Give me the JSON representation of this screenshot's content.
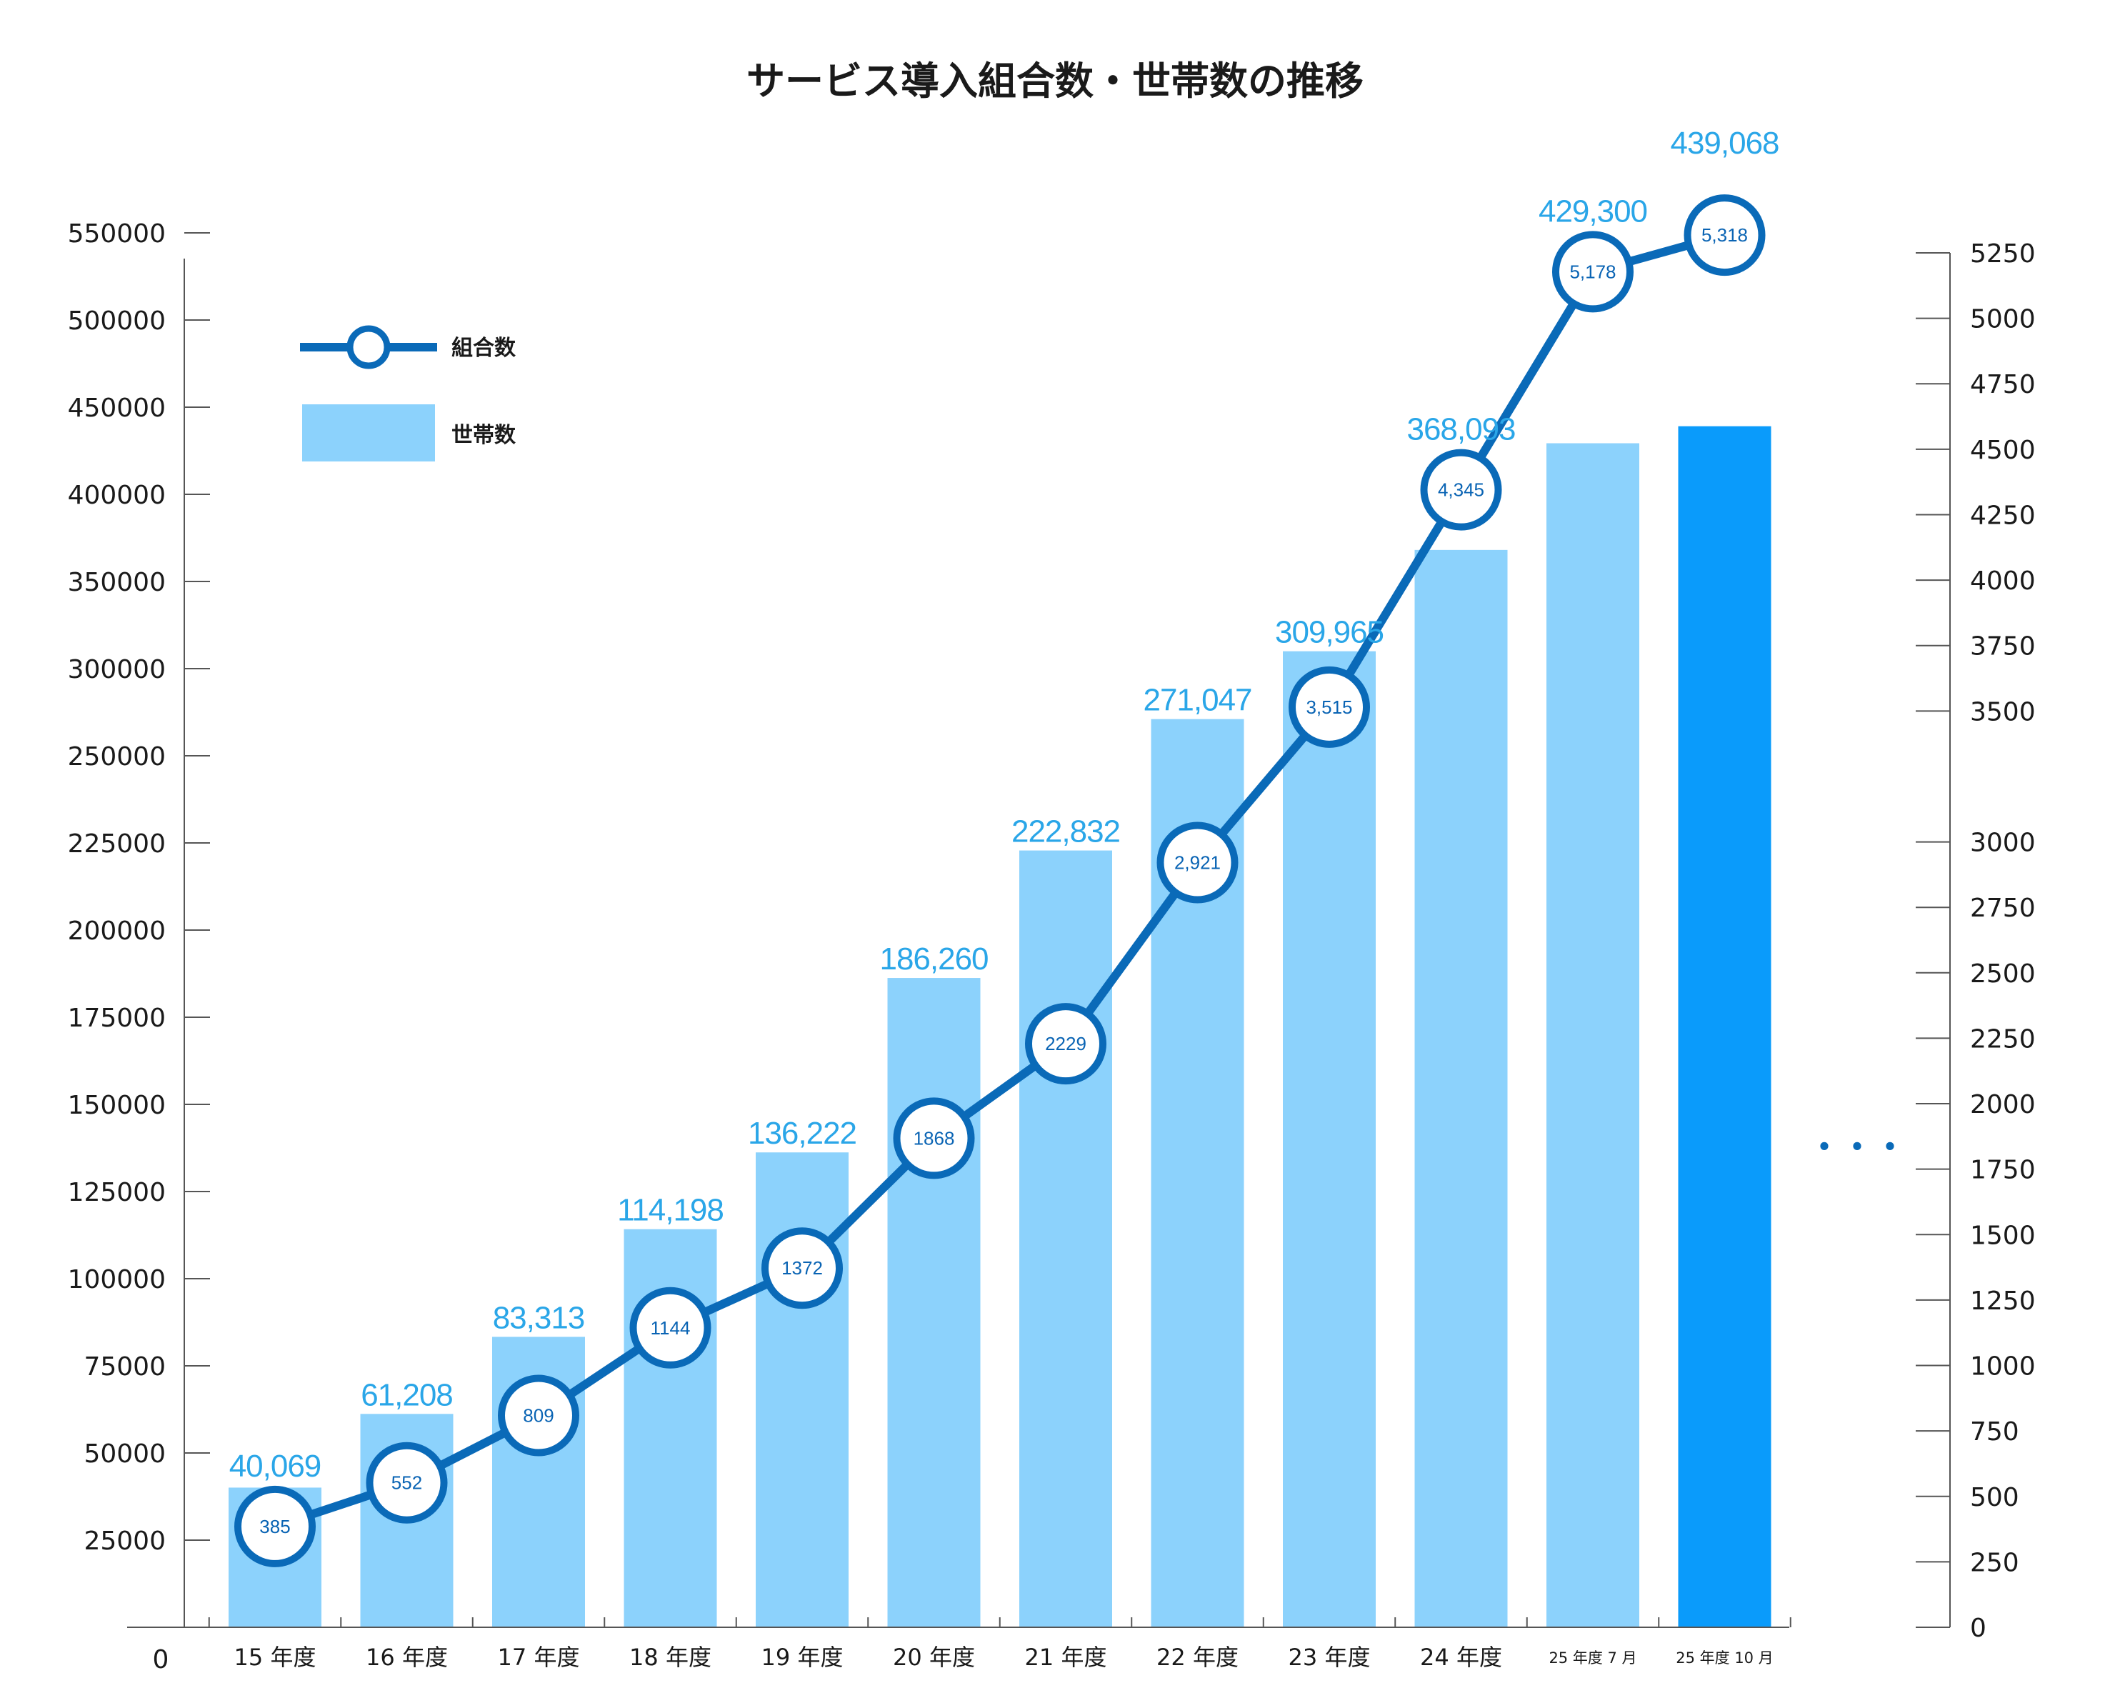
{
  "chart_data": {
    "type": "bar",
    "title": "サービス導入組合数・世帯数の推移",
    "categories": [
      "15 年度",
      "16 年度",
      "17 年度",
      "18 年度",
      "19 年度",
      "20 年度",
      "21 年度",
      "22 年度",
      "23 年度",
      "24 年度",
      "25 年度 7 月",
      "25 年度 10 月"
    ],
    "series": [
      {
        "name": "世帯数",
        "kind": "bar",
        "axis": "left",
        "color": "#8cd2fc",
        "highlight_color": "#0a9bfb",
        "highlight_index": 11,
        "values": [
          40069,
          61208,
          83313,
          114198,
          136222,
          186260,
          222832,
          271047,
          309965,
          368093,
          429300,
          439068
        ],
        "labels": [
          "40,069",
          "61,208",
          "83,313",
          "114,198",
          "136,222",
          "186,260",
          "222,832",
          "271,047",
          "309,965",
          "368,093",
          "429,300",
          "439,068"
        ]
      },
      {
        "name": "組合数",
        "kind": "line",
        "axis": "right",
        "color": "#0a6ab8",
        "values": [
          385,
          552,
          809,
          1144,
          1372,
          1868,
          2229,
          2921,
          3515,
          4345,
          5178,
          5318
        ],
        "labels": [
          "385",
          "552",
          "809",
          "1144",
          "1372",
          "1868",
          "2229",
          "2,921",
          "3,515",
          "4,345",
          "5,178",
          "5,318"
        ]
      }
    ],
    "left_axis": {
      "ticks": [
        0,
        25000,
        50000,
        75000,
        100000,
        125000,
        150000,
        175000,
        200000,
        225000,
        250000,
        300000,
        350000,
        400000,
        450000,
        500000,
        550000
      ]
    },
    "right_axis": {
      "ticks": [
        0,
        250,
        500,
        750,
        1000,
        1250,
        1500,
        1750,
        2000,
        2250,
        2500,
        2750,
        3000,
        3500,
        3750,
        4000,
        4250,
        4500,
        4750,
        5000,
        5250
      ]
    },
    "legend_position": "top-left",
    "continuation_marker": "・・・",
    "grid": false
  }
}
